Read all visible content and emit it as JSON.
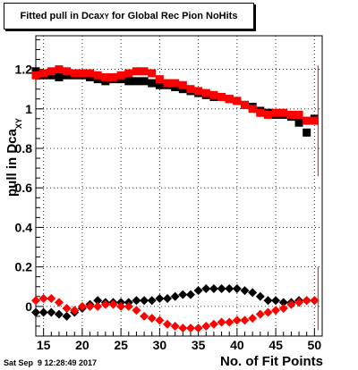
{
  "header": {
    "title_prefix": "Fitted pull in Dca",
    "title_sub": "XY",
    "title_suffix": " for Global Rec Pion NoHits"
  },
  "footer": {
    "datestamp": "Sat Sep  9 12:28:49 2017"
  },
  "chart_data": {
    "type": "scatter",
    "title": "Fitted pull in Dca XY for Global Rec Pion NoHits",
    "xlabel": "No. of Fit Points",
    "ylabel_main": "pull in Dca",
    "ylabel_sub": "XY",
    "xlim": [
      14,
      51
    ],
    "ylim": [
      -0.15,
      1.37
    ],
    "grid": true,
    "x_ticks": [
      15,
      20,
      25,
      30,
      35,
      40,
      45,
      50
    ],
    "y_ticks": [
      0,
      0.2,
      0.4,
      0.6,
      0.8,
      1,
      1.2
    ],
    "y_tick_labels": [
      "0",
      "0.2",
      "0.4",
      "0.6",
      "0.8",
      "1",
      "1.2"
    ],
    "series": [
      {
        "kind": "sigma",
        "color": "#000000",
        "marker": "square",
        "x": [
          14,
          15,
          16,
          17,
          18,
          19,
          20,
          21,
          22,
          23,
          24,
          25,
          26,
          27,
          28,
          29,
          30,
          31,
          32,
          33,
          34,
          35,
          36,
          37,
          38,
          39,
          40,
          41,
          42,
          43,
          44,
          45,
          46,
          47,
          48,
          49,
          50
        ],
        "y": [
          1.19,
          1.17,
          1.17,
          1.16,
          1.17,
          1.17,
          1.17,
          1.16,
          1.15,
          1.14,
          1.15,
          1.15,
          1.14,
          1.14,
          1.14,
          1.13,
          1.12,
          1.12,
          1.11,
          1.1,
          1.09,
          1.08,
          1.07,
          1.06,
          1.06,
          1.05,
          1.04,
          1.02,
          1.01,
          0.99,
          0.98,
          0.97,
          0.97,
          0.96,
          0.93,
          0.88,
          0.95
        ]
      },
      {
        "kind": "sigma",
        "color": "#ff0000",
        "marker": "square",
        "x": [
          14,
          15,
          16,
          17,
          18,
          19,
          20,
          21,
          22,
          23,
          24,
          25,
          26,
          27,
          28,
          29,
          30,
          31,
          32,
          33,
          34,
          35,
          36,
          37,
          38,
          39,
          40,
          41,
          42,
          43,
          44,
          45,
          46,
          47,
          48,
          49,
          50
        ],
        "y": [
          1.17,
          1.18,
          1.19,
          1.2,
          1.19,
          1.18,
          1.18,
          1.18,
          1.17,
          1.16,
          1.16,
          1.17,
          1.18,
          1.19,
          1.19,
          1.18,
          1.15,
          1.13,
          1.13,
          1.12,
          1.1,
          1.09,
          1.08,
          1.07,
          1.06,
          1.05,
          1.04,
          1.02,
          1.0,
          0.98,
          0.97,
          0.98,
          0.98,
          0.97,
          0.97,
          0.94,
          0.94
        ]
      },
      {
        "kind": "mean",
        "color": "#000000",
        "marker": "diamond",
        "x": [
          14,
          15,
          16,
          17,
          18,
          19,
          20,
          21,
          22,
          23,
          24,
          25,
          26,
          27,
          28,
          29,
          30,
          31,
          32,
          33,
          34,
          35,
          36,
          37,
          38,
          39,
          40,
          41,
          42,
          43,
          44,
          45,
          46,
          47,
          48,
          49,
          50
        ],
        "y": [
          -0.03,
          -0.03,
          -0.03,
          -0.04,
          -0.05,
          -0.03,
          -0.01,
          0.01,
          0.03,
          0.02,
          0.02,
          0.02,
          0.02,
          0.03,
          0.03,
          0.03,
          0.04,
          0.04,
          0.05,
          0.06,
          0.06,
          0.08,
          0.09,
          0.09,
          0.09,
          0.09,
          0.09,
          0.08,
          0.07,
          0.05,
          0.03,
          0.03,
          0.02,
          0.02,
          0.03,
          0.03,
          0.03
        ]
      },
      {
        "kind": "mean",
        "color": "#ff0000",
        "marker": "diamond",
        "x": [
          14,
          15,
          16,
          17,
          18,
          19,
          20,
          21,
          22,
          23,
          24,
          25,
          26,
          27,
          28,
          29,
          30,
          31,
          32,
          33,
          34,
          35,
          36,
          37,
          38,
          39,
          40,
          41,
          42,
          43,
          44,
          45,
          46,
          47,
          48,
          49,
          50
        ],
        "y": [
          0.03,
          0.04,
          0.04,
          0.02,
          -0.01,
          -0.02,
          0.0,
          0.0,
          0.0,
          0.01,
          0.01,
          0.0,
          0.0,
          -0.02,
          -0.05,
          -0.06,
          -0.07,
          -0.09,
          -0.1,
          -0.11,
          -0.11,
          -0.11,
          -0.1,
          -0.09,
          -0.08,
          -0.08,
          -0.07,
          -0.07,
          -0.06,
          -0.04,
          -0.03,
          -0.02,
          -0.01,
          0.01,
          0.02,
          0.03,
          0.03
        ]
      }
    ]
  }
}
